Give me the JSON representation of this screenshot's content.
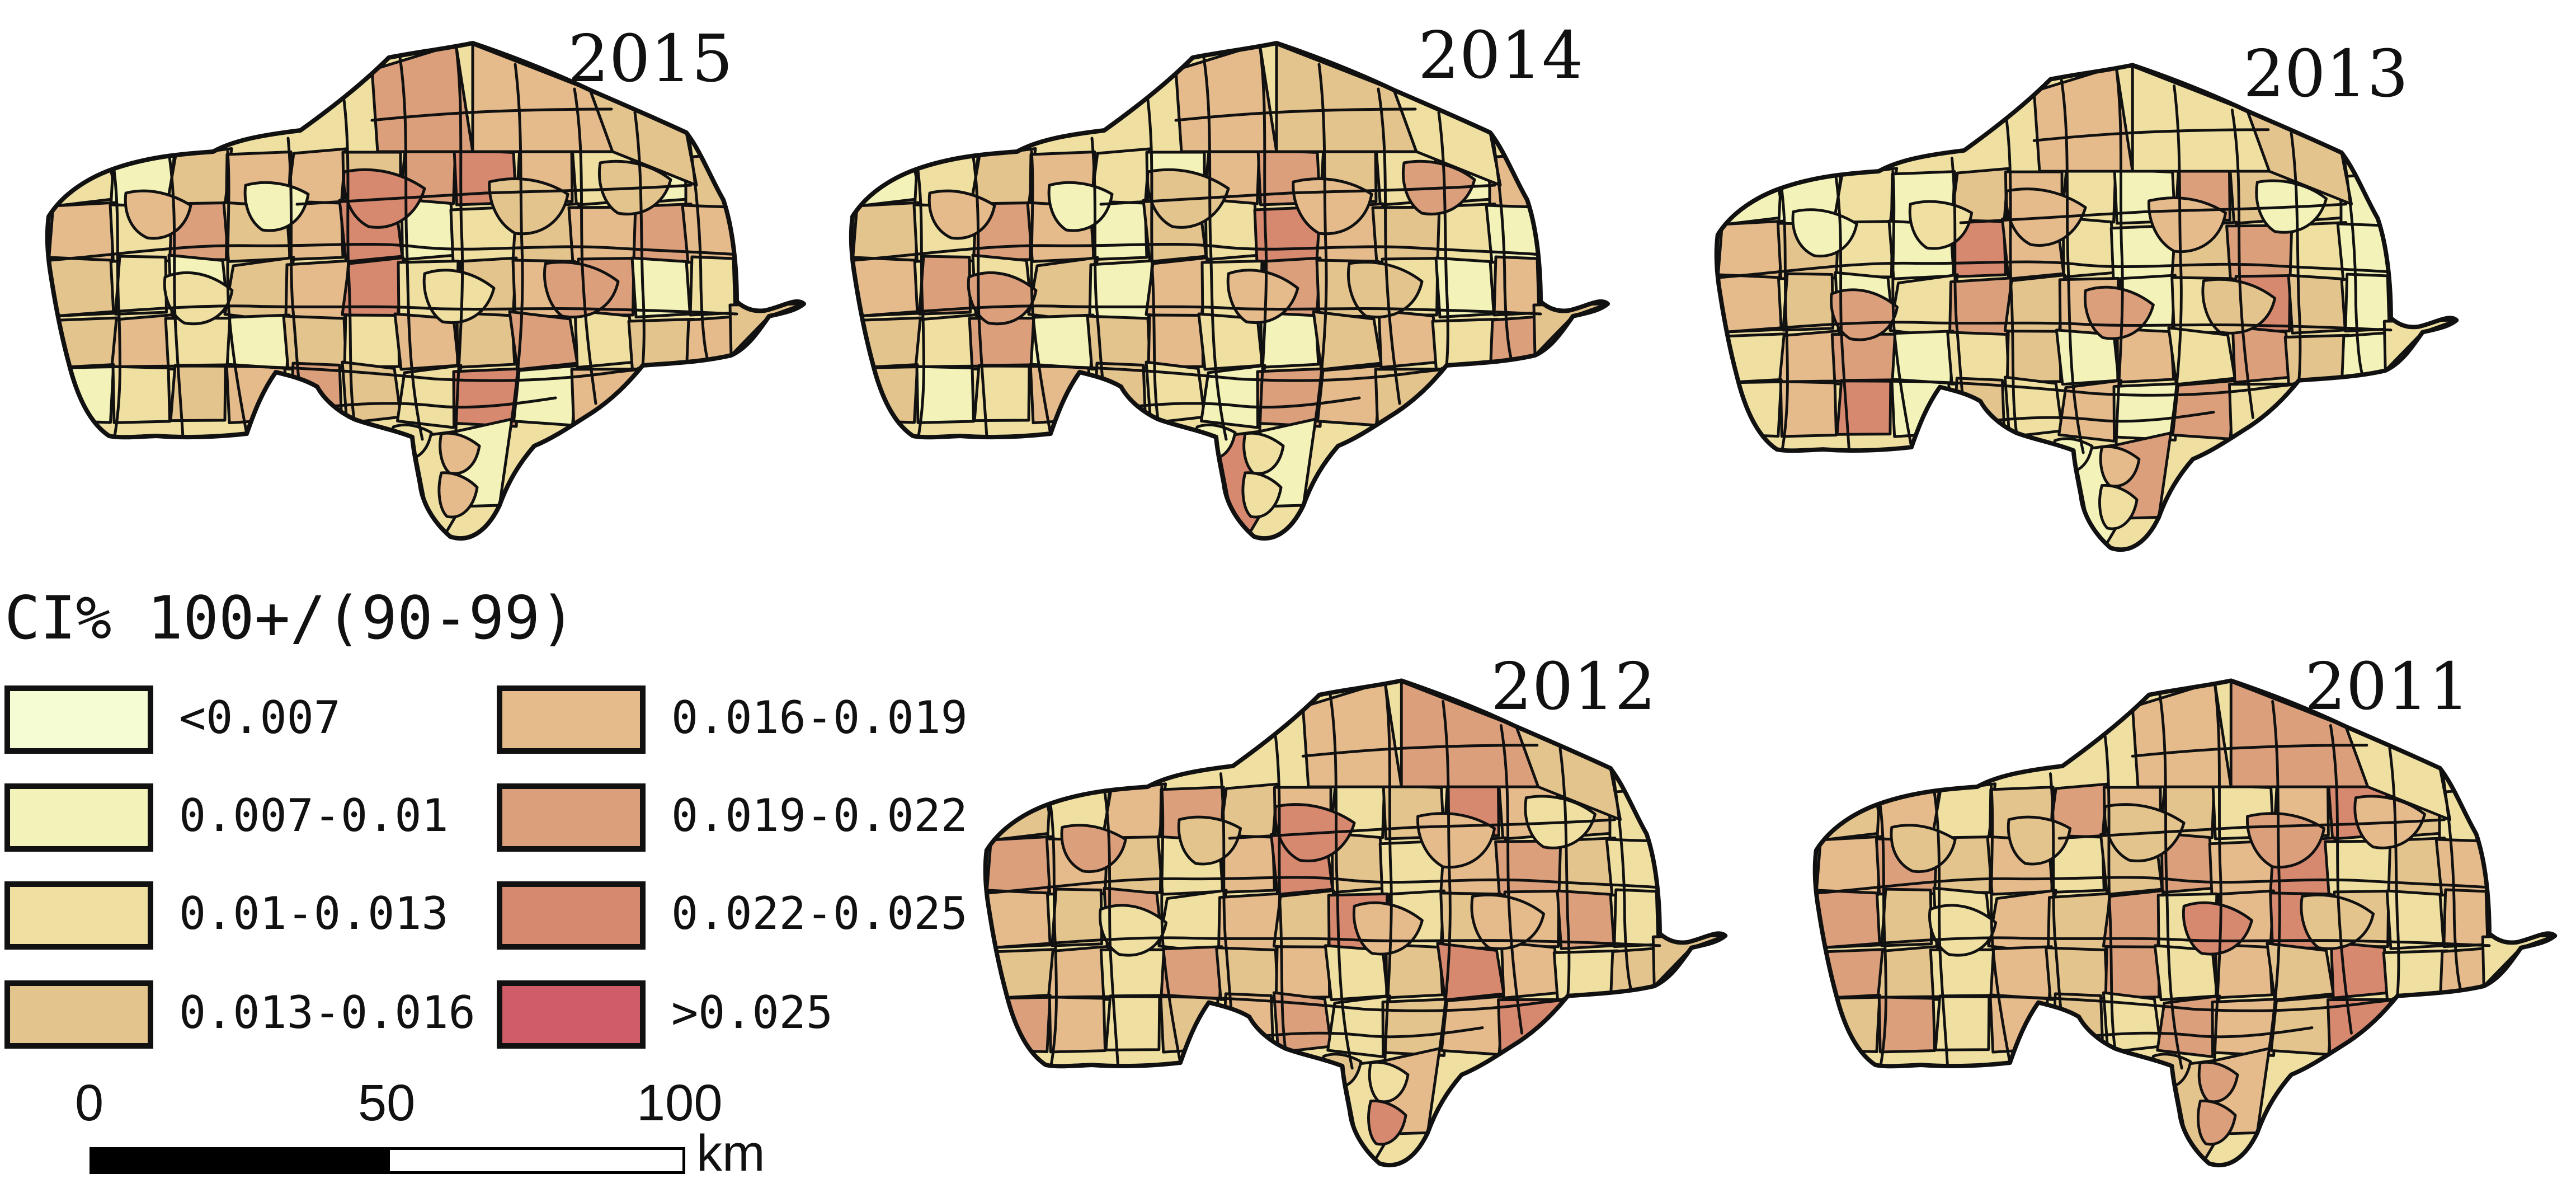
{
  "figure": {
    "maps": [
      {
        "year": "2015",
        "color_pattern": [
          2,
          1,
          3,
          4,
          4,
          3,
          5,
          6,
          4,
          2,
          1,
          3,
          4,
          2,
          5,
          3,
          4,
          6,
          1,
          2,
          3,
          4,
          5,
          4,
          3,
          2,
          1,
          3,
          4,
          6,
          2,
          3,
          4,
          5,
          1,
          2,
          3,
          4,
          2,
          1,
          3,
          2,
          4,
          3,
          5,
          2,
          3,
          4,
          1,
          2,
          3,
          4,
          5,
          3,
          2,
          6,
          1,
          4,
          3,
          2,
          5,
          4,
          3,
          2,
          1,
          3,
          4,
          2,
          3,
          5,
          2,
          1,
          3,
          4,
          2,
          3,
          4,
          5,
          6,
          3,
          2,
          1,
          3,
          4,
          2,
          5,
          3,
          2,
          1,
          4,
          6
        ]
      },
      {
        "year": "2014",
        "color_pattern": [
          1,
          2,
          3,
          4,
          2,
          1,
          4,
          5,
          3,
          2,
          1,
          4,
          3,
          2,
          5,
          4,
          1,
          3,
          2,
          6,
          4,
          3,
          2,
          1,
          4,
          5,
          2,
          3,
          1,
          4,
          2,
          5,
          3,
          2,
          1,
          4,
          3,
          2,
          5,
          1,
          3,
          4,
          2,
          1,
          3,
          4,
          2,
          5,
          3,
          1,
          2,
          4,
          3,
          2,
          1,
          5,
          4,
          3,
          2,
          1,
          4,
          3,
          2,
          6,
          1,
          3,
          2,
          4,
          5,
          2,
          1,
          3,
          4,
          2,
          3,
          5,
          1,
          2,
          4,
          3,
          2,
          1,
          3,
          4,
          2,
          5,
          1,
          3,
          2,
          4,
          6
        ]
      },
      {
        "year": "2013",
        "color_pattern": [
          1,
          1,
          2,
          1,
          3,
          4,
          2,
          1,
          5,
          3,
          2,
          1,
          4,
          3,
          2,
          1,
          6,
          4,
          2,
          1,
          3,
          5,
          2,
          1,
          4,
          3,
          1,
          2,
          5,
          3,
          4,
          1,
          2,
          6,
          3,
          1,
          2,
          4,
          5,
          1,
          2,
          3,
          1,
          4,
          2,
          5,
          3,
          1,
          2,
          4,
          6,
          1,
          3,
          2,
          4,
          1,
          5,
          2,
          3,
          1,
          4,
          2,
          3,
          1,
          5,
          2,
          4,
          1,
          3,
          2,
          6,
          1,
          4,
          2,
          3,
          1,
          5,
          2,
          4,
          3,
          1,
          2,
          3,
          4,
          1,
          5,
          2,
          3,
          1,
          4,
          6
        ]
      },
      {
        "year": "2012",
        "color_pattern": [
          3,
          2,
          4,
          5,
          3,
          4,
          2,
          3,
          6,
          4,
          3,
          2,
          5,
          4,
          3,
          2,
          4,
          6,
          3,
          2,
          4,
          5,
          3,
          2,
          4,
          3,
          5,
          2,
          4,
          3,
          6,
          2,
          3,
          4,
          5,
          2,
          3,
          4,
          2,
          5,
          3,
          4,
          2,
          3,
          6,
          4,
          2,
          3,
          5,
          4,
          2,
          3,
          4,
          5,
          2,
          3,
          4,
          6,
          2,
          3,
          4,
          5,
          3,
          2,
          4,
          3,
          2,
          5,
          4,
          3,
          2,
          4,
          3,
          6,
          2,
          3,
          4,
          5,
          2,
          3,
          4,
          2,
          5,
          3,
          4,
          2,
          3,
          4,
          6,
          2,
          5
        ]
      },
      {
        "year": "2011",
        "color_pattern": [
          3,
          4,
          2,
          3,
          5,
          4,
          3,
          2,
          4,
          6,
          3,
          2,
          4,
          5,
          3,
          4,
          2,
          3,
          5,
          4,
          6,
          2,
          3,
          4,
          5,
          3,
          2,
          4,
          3,
          5,
          2,
          4,
          6,
          3,
          2,
          4,
          5,
          3,
          2,
          4,
          3,
          5,
          2,
          4,
          3,
          6,
          2,
          4,
          3,
          5,
          2,
          4,
          3,
          2,
          5,
          4,
          3,
          6,
          2,
          3,
          4,
          5,
          2,
          3,
          4,
          2,
          5,
          3,
          4,
          6,
          2,
          3,
          4,
          5,
          2,
          3,
          4,
          2,
          5,
          3,
          4,
          6,
          2,
          3,
          4,
          5,
          2,
          3,
          4,
          2,
          6
        ]
      }
    ],
    "legend": {
      "title": "CI% 100+/(90-99)",
      "classes": [
        {
          "label": "<0.007",
          "color": "#f5fbd2"
        },
        {
          "label": "0.007-0.01",
          "color": "#f3f2b8"
        },
        {
          "label": "0.01-0.013",
          "color": "#efe0a1"
        },
        {
          "label": "0.013-0.016",
          "color": "#e4c48d"
        },
        {
          "label": "0.016-0.019",
          "color": "#e5bb8b"
        },
        {
          "label": "0.019-0.022",
          "color": "#dba07b"
        },
        {
          "label": "0.022-0.025",
          "color": "#d7896f"
        },
        {
          "label": ">0.025",
          "color": "#cf5c66"
        }
      ]
    },
    "scale": {
      "zero": "0",
      "mid": "50",
      "max": "100",
      "unit": "km"
    }
  }
}
